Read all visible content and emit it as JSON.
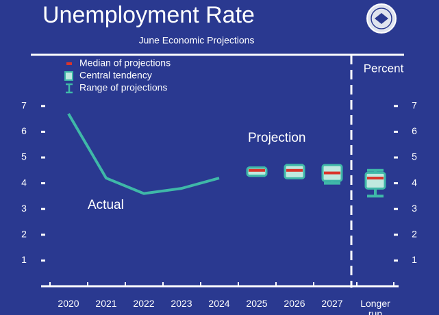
{
  "chart_data": {
    "type": "line",
    "title": "Unemployment Rate",
    "subtitle": "June Economic Projections",
    "y_axis_label": "Percent",
    "categories": [
      "2020",
      "2021",
      "2022",
      "2023",
      "2024",
      "2025",
      "2026",
      "2027",
      "Longer run"
    ],
    "actual": {
      "color": "#3fb8a8",
      "values": [
        6.7,
        4.2,
        3.6,
        3.8,
        4.2,
        null,
        null,
        null,
        null
      ]
    },
    "series": [
      {
        "name": "Median of projections",
        "color": "#d9342b",
        "values": [
          null,
          null,
          null,
          null,
          null,
          4.5,
          4.5,
          4.4,
          4.2
        ]
      },
      {
        "name": "Central tendency",
        "color": "#bfe9df",
        "low": [
          null,
          null,
          null,
          null,
          null,
          4.4,
          4.3,
          4.2,
          3.9
        ],
        "high": [
          null,
          null,
          null,
          null,
          null,
          4.5,
          4.6,
          4.6,
          4.3
        ]
      },
      {
        "name": "Range of projections",
        "color": "#3fb8a8",
        "low": [
          null,
          null,
          null,
          null,
          null,
          4.3,
          4.3,
          4.0,
          3.5
        ],
        "high": [
          null,
          null,
          null,
          null,
          null,
          4.6,
          4.7,
          4.6,
          4.5
        ]
      }
    ],
    "annotations": [
      "Actual",
      "Projection"
    ],
    "ylim": [
      0,
      7.5
    ],
    "yticks": [
      1,
      2,
      3,
      4,
      5,
      6,
      7
    ],
    "background": "#2a3990"
  }
}
